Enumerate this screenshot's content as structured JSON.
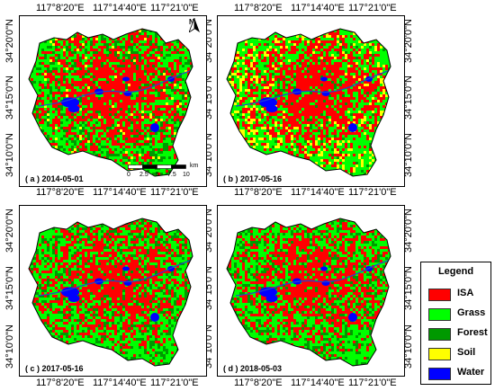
{
  "lon_labels": [
    "117°8'20\"E",
    "117°14'40\"E",
    "117°21'0\"E"
  ],
  "lat_labels": [
    "34°20'0\"N",
    "34°15'0\"N",
    "34°10'0\"N"
  ],
  "panels": [
    {
      "caption": "( a ) 2014-05-01"
    },
    {
      "caption": "( b ) 2017-05-16"
    },
    {
      "caption": "( c ) 2017-05-16"
    },
    {
      "caption": "( d ) 2018-05-03"
    }
  ],
  "north_label": "N",
  "scale_bar": {
    "ticks": [
      "0",
      "2.5",
      "5",
      "7.5",
      "10"
    ],
    "unit": "km"
  },
  "legend": {
    "title": "Legend",
    "items": [
      {
        "label": "ISA",
        "color": "#ff0000"
      },
      {
        "label": "Grass",
        "color": "#00ff00"
      },
      {
        "label": "Forest",
        "color": "#009900"
      },
      {
        "label": "Soil",
        "color": "#ffff00"
      },
      {
        "label": "Water",
        "color": "#0000ff"
      }
    ]
  }
}
